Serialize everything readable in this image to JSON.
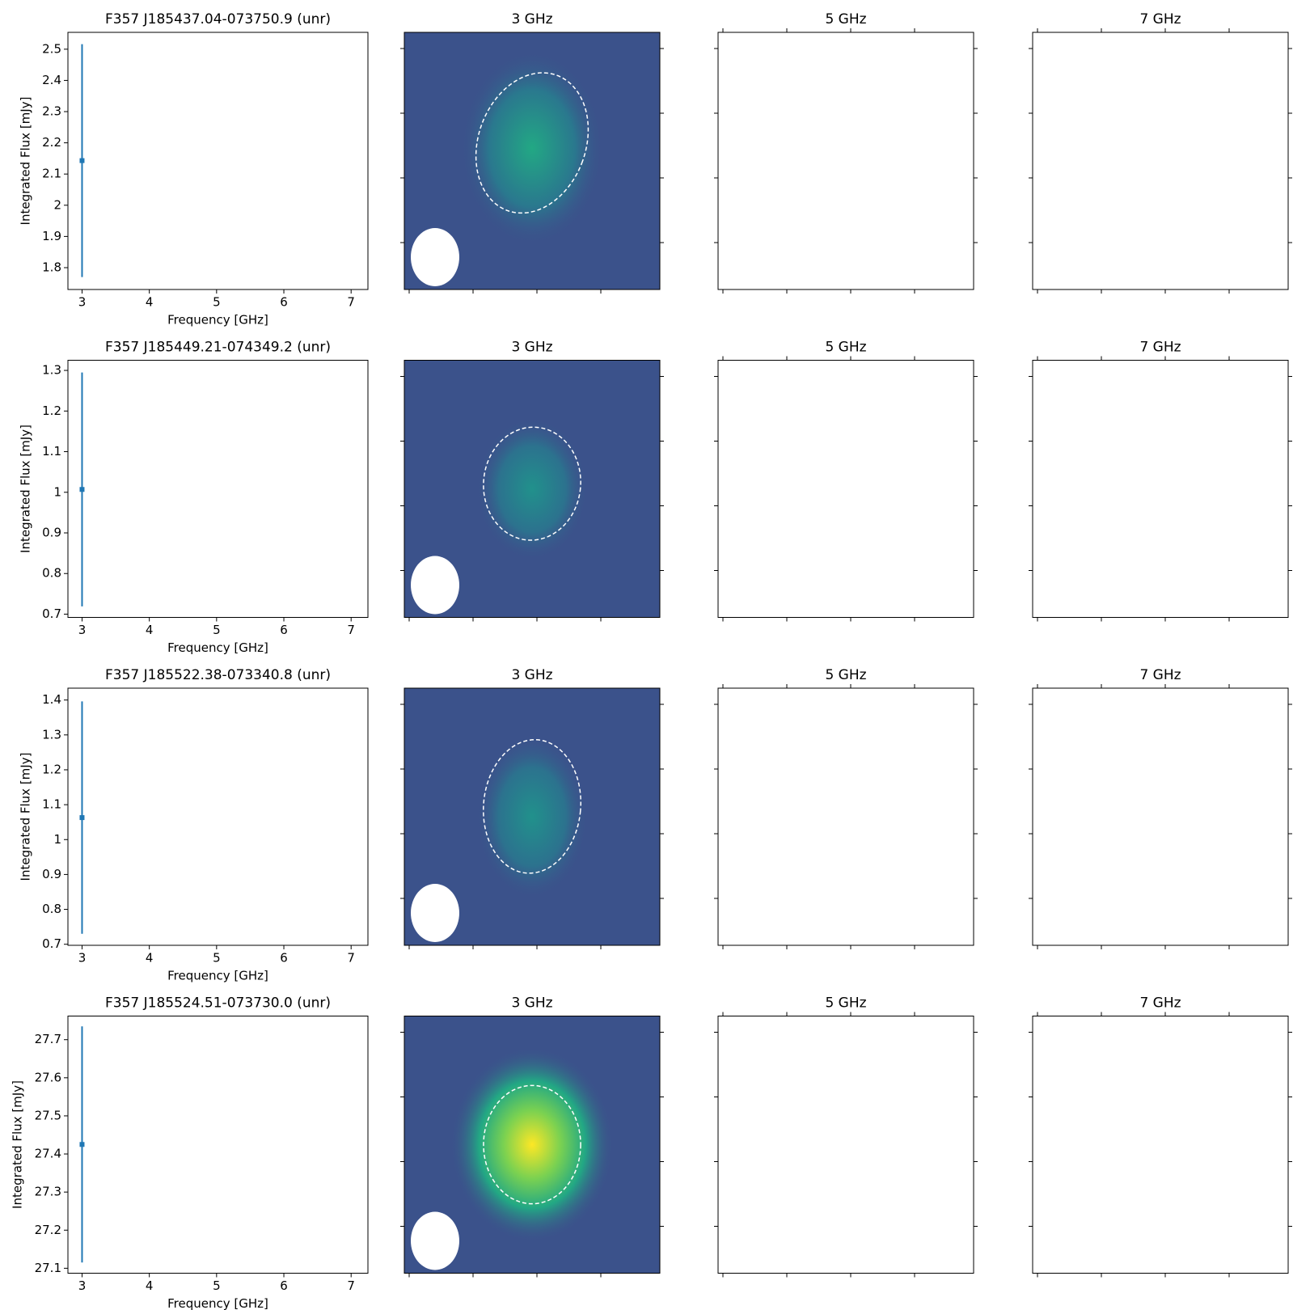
{
  "chart_data": [
    {
      "type": "errorbar",
      "title": "F357 J185437.04-073750.9 (unr)",
      "xlabel": "Frequency [GHz]",
      "ylabel": "Integrated Flux [mJy]",
      "color": "#1f77b4",
      "x": [
        3
      ],
      "values": [
        2.143
      ],
      "errors": [
        0.373
      ],
      "xlim": [
        2.79,
        7.25
      ],
      "ylim": [
        1.73,
        2.554
      ],
      "xticks": [
        3,
        4,
        5,
        6,
        7
      ],
      "yticks": [
        1.8,
        1.9,
        2.0,
        2.1,
        2.2,
        2.3,
        2.4,
        2.5
      ],
      "panel_titles": [
        "3 GHz",
        "5 GHz",
        "7 GHz"
      ]
    },
    {
      "type": "errorbar",
      "title": "F357 J185449.21-074349.2 (unr)",
      "xlabel": "Frequency [GHz]",
      "ylabel": "Integrated Flux [mJy]",
      "color": "#1f77b4",
      "x": [
        3
      ],
      "values": [
        1.007
      ],
      "errors": [
        0.288
      ],
      "xlim": [
        2.79,
        7.25
      ],
      "ylim": [
        0.692,
        1.325
      ],
      "xticks": [
        3,
        4,
        5,
        6,
        7
      ],
      "yticks": [
        0.7,
        0.8,
        0.9,
        1.0,
        1.1,
        1.2,
        1.3
      ],
      "panel_titles": [
        "3 GHz",
        "5 GHz",
        "7 GHz"
      ]
    },
    {
      "type": "errorbar",
      "title": "F357 J185522.38-073340.8 (unr)",
      "xlabel": "Frequency [GHz]",
      "ylabel": "Integrated Flux [mJy]",
      "color": "#1f77b4",
      "x": [
        3
      ],
      "values": [
        1.063
      ],
      "errors": [
        0.333
      ],
      "xlim": [
        2.79,
        7.25
      ],
      "ylim": [
        0.697,
        1.434
      ],
      "xticks": [
        3,
        4,
        5,
        6,
        7
      ],
      "yticks": [
        0.7,
        0.8,
        0.9,
        1.0,
        1.1,
        1.2,
        1.3,
        1.4
      ],
      "panel_titles": [
        "3 GHz",
        "5 GHz",
        "7 GHz"
      ]
    },
    {
      "type": "errorbar",
      "title": "F357 J185524.51-073730.0 (unr)",
      "xlabel": "Frequency [GHz]",
      "ylabel": "Integrated Flux [mJy]",
      "color": "#1f77b4",
      "x": [
        3
      ],
      "values": [
        27.425
      ],
      "errors": [
        0.31
      ],
      "xlim": [
        2.79,
        7.25
      ],
      "ylim": [
        27.087,
        27.762
      ],
      "xticks": [
        3,
        4,
        5,
        6,
        7
      ],
      "yticks": [
        27.1,
        27.2,
        27.3,
        27.4,
        27.5,
        27.6,
        27.7
      ],
      "panel_titles": [
        "3 GHz",
        "5 GHz",
        "7 GHz"
      ]
    }
  ]
}
